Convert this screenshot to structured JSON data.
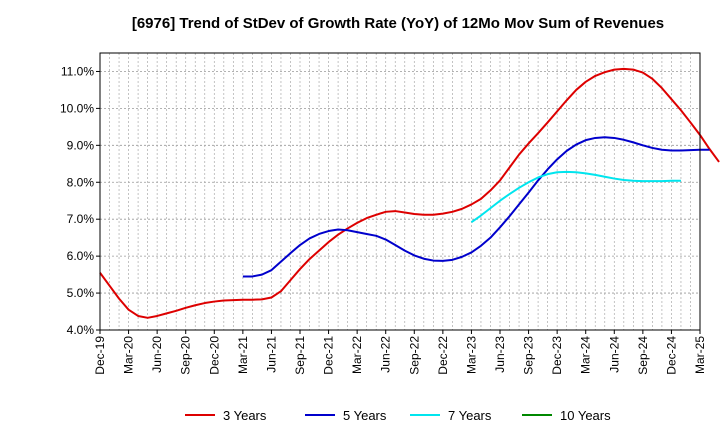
{
  "chart_data": {
    "type": "line",
    "title": "[6976]  Trend of StDev of Growth Rate (YoY) of 12Mo Mov Sum of Revenues",
    "xlabel": "",
    "ylabel": "",
    "y_unit": "%",
    "ylim": [
      4.0,
      11.5
    ],
    "y_ticks": [
      4.0,
      5.0,
      6.0,
      7.0,
      8.0,
      9.0,
      10.0,
      11.0
    ],
    "y_tick_labels": [
      "4.0%",
      "5.0%",
      "6.0%",
      "7.0%",
      "8.0%",
      "9.0%",
      "10.0%",
      "11.0%"
    ],
    "x_start": "2019-12",
    "x_end": "2025-03",
    "x_tick_labels": [
      "Dec-19",
      "Mar-20",
      "Jun-20",
      "Sep-20",
      "Dec-20",
      "Mar-21",
      "Jun-21",
      "Sep-21",
      "Dec-21",
      "Mar-22",
      "Jun-22",
      "Sep-22",
      "Dec-22",
      "Mar-23",
      "Jun-23",
      "Sep-23",
      "Dec-23",
      "Mar-24",
      "Jun-24",
      "Sep-24",
      "Dec-24",
      "Mar-25"
    ],
    "grid": true,
    "legend_position": "bottom",
    "series": [
      {
        "name": "3 Years",
        "color": "#dd0000",
        "start_month_index": 0,
        "values": [
          5.55,
          5.2,
          4.85,
          4.55,
          4.38,
          4.33,
          4.38,
          4.45,
          4.52,
          4.6,
          4.67,
          4.73,
          4.77,
          4.8,
          4.81,
          4.82,
          4.82,
          4.83,
          4.88,
          5.05,
          5.35,
          5.65,
          5.92,
          6.15,
          6.38,
          6.58,
          6.75,
          6.9,
          7.03,
          7.12,
          7.2,
          7.22,
          7.18,
          7.14,
          7.12,
          7.12,
          7.15,
          7.2,
          7.28,
          7.4,
          7.55,
          7.78,
          8.05,
          8.4,
          8.75,
          9.05,
          9.33,
          9.62,
          9.92,
          10.22,
          10.5,
          10.72,
          10.88,
          10.98,
          11.05,
          11.07,
          11.05,
          10.97,
          10.8,
          10.55,
          10.25,
          9.95,
          9.62,
          9.28,
          8.9,
          8.55
        ]
      },
      {
        "name": "5 Years",
        "color": "#0000cc",
        "start_month_index": 15,
        "values": [
          5.45,
          5.45,
          5.5,
          5.62,
          5.85,
          6.08,
          6.3,
          6.48,
          6.6,
          6.68,
          6.72,
          6.7,
          6.65,
          6.6,
          6.55,
          6.45,
          6.3,
          6.15,
          6.02,
          5.93,
          5.88,
          5.87,
          5.9,
          5.98,
          6.1,
          6.28,
          6.5,
          6.78,
          7.08,
          7.4,
          7.72,
          8.05,
          8.35,
          8.62,
          8.85,
          9.02,
          9.14,
          9.2,
          9.22,
          9.2,
          9.15,
          9.08,
          9.0,
          8.93,
          8.88,
          8.86,
          8.86,
          8.87,
          8.88,
          8.88
        ]
      },
      {
        "name": "7 Years",
        "color": "#00e5ee",
        "start_month_index": 39,
        "values": [
          6.92,
          7.1,
          7.3,
          7.5,
          7.68,
          7.85,
          8.0,
          8.13,
          8.22,
          8.27,
          8.28,
          8.27,
          8.24,
          8.2,
          8.15,
          8.1,
          8.06,
          8.04,
          8.03,
          8.03,
          8.03,
          8.04,
          8.04
        ]
      },
      {
        "name": "10 Years",
        "color": "#008800",
        "start_month_index": 0,
        "values": []
      }
    ]
  }
}
